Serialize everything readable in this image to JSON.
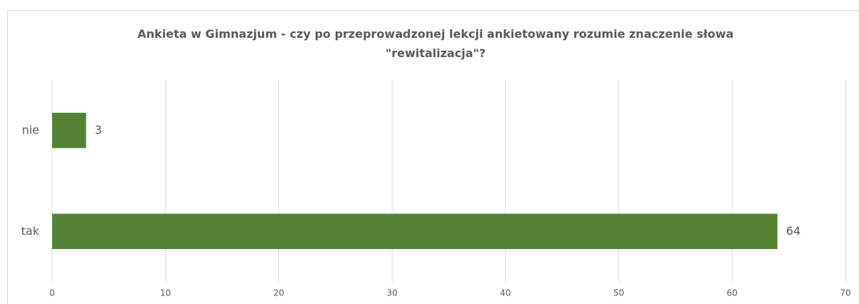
{
  "chart_data": {
    "type": "hbar",
    "title": "Ankieta w Gimnazjum - czy po przeprowadzonej lekcji ankietowany rozumie znaczenie słowa \"rewitalizacja\"?",
    "categories": [
      "nie",
      "tak"
    ],
    "values": [
      3,
      64
    ],
    "color": "#548235",
    "xlim": [
      0,
      70
    ],
    "xticks": [
      0,
      10,
      20,
      30,
      40,
      50,
      60,
      70
    ],
    "grid": true
  }
}
